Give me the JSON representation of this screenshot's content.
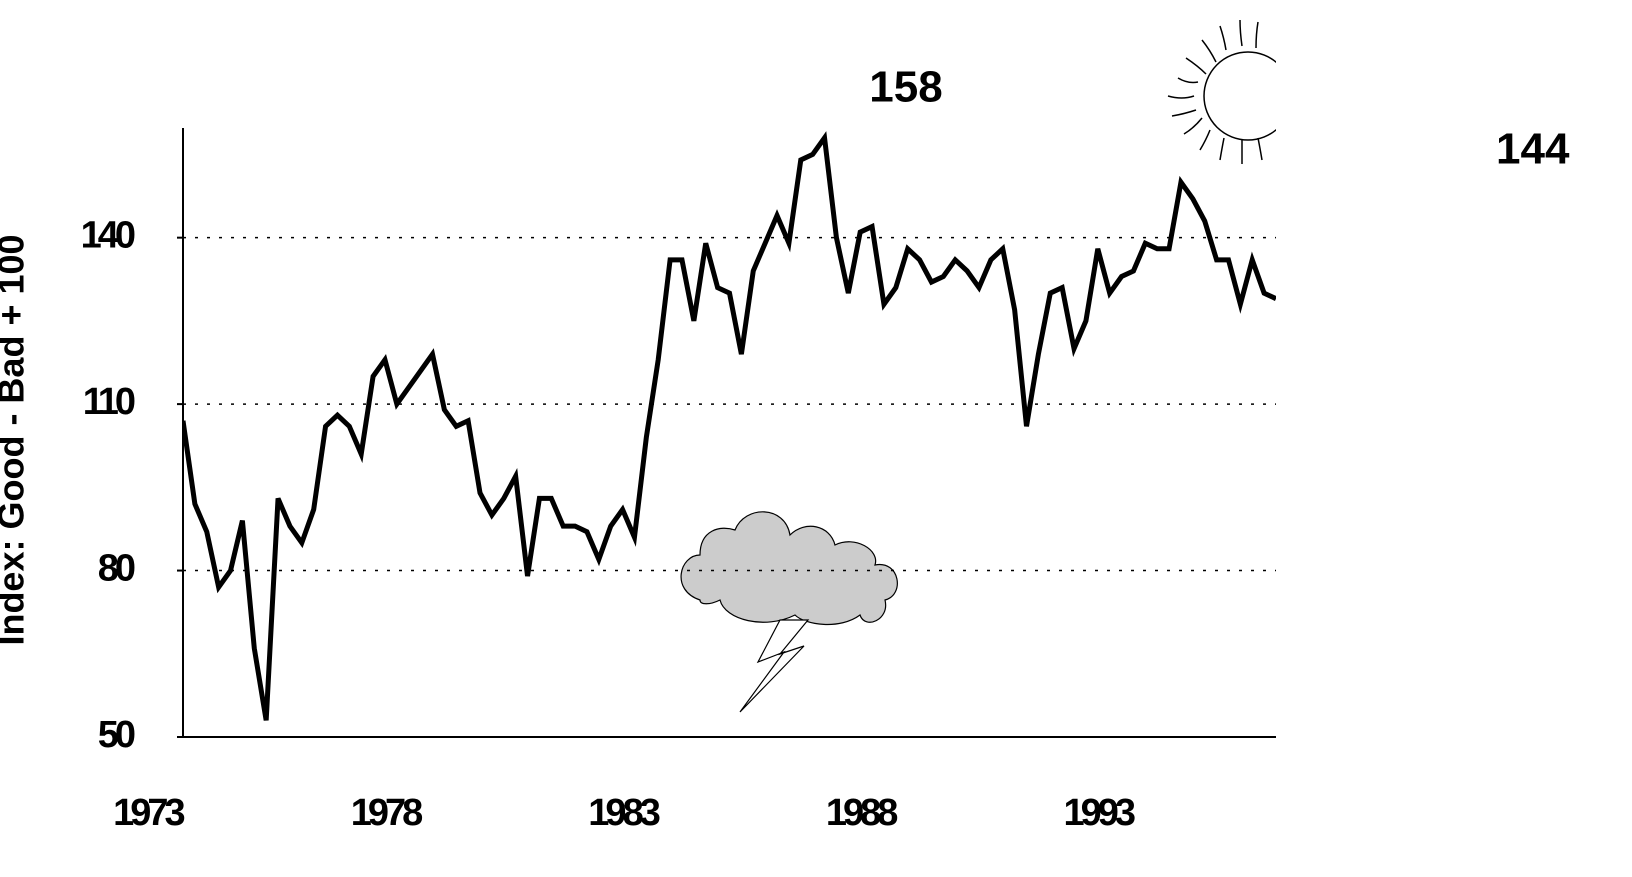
{
  "chart_data": {
    "type": "line",
    "y_label": "Index: Good - Bad + 100",
    "annotations": [
      "158",
      "144"
    ],
    "x": [
      1973.75,
      1974,
      1974.25,
      1974.5,
      1974.75,
      1975,
      1975.25,
      1975.5,
      1975.75,
      1976,
      1976.25,
      1976.5,
      1976.75,
      1977,
      1977.25,
      1977.5,
      1977.75,
      1978,
      1978.25,
      1978.5,
      1978.75,
      1979,
      1979.25,
      1979.5,
      1979.75,
      1980,
      1980.25,
      1980.5,
      1980.75,
      1981,
      1981.25,
      1981.5,
      1981.75,
      1982,
      1982.25,
      1982.5,
      1982.75,
      1983,
      1983.25,
      1983.5,
      1983.75,
      1984,
      1984.25,
      1984.5,
      1984.75,
      1985,
      1985.25,
      1985.5,
      1985.75,
      1986,
      1986.25,
      1986.5,
      1986.75,
      1987,
      1987.25,
      1987.5,
      1987.75,
      1988,
      1988.25,
      1988.5,
      1988.75,
      1989,
      1989.25,
      1989.5,
      1989.75,
      1990,
      1990.25,
      1990.5,
      1990.75,
      1991,
      1991.25,
      1991.5,
      1991.75,
      1992,
      1992.25,
      1992.5,
      1992.75,
      1993,
      1993.25,
      1993.5,
      1993.75,
      1994,
      1994.25,
      1994.5,
      1994.75,
      1995,
      1995.25,
      1995.5,
      1995.75,
      1996,
      1996.25,
      1996.5,
      1996.75
    ],
    "series": [
      {
        "color": "#000000",
        "values": [
          107,
          92,
          87,
          77,
          80,
          89,
          66,
          53,
          93,
          88,
          85,
          91,
          106,
          108,
          106,
          101,
          115,
          118,
          110,
          113,
          116,
          119,
          109,
          106,
          107,
          94,
          90,
          93,
          97,
          79,
          93,
          93,
          88,
          88,
          87,
          82,
          88,
          91,
          86,
          104,
          118,
          136,
          136,
          125,
          139,
          131,
          130,
          119,
          134,
          139,
          144,
          139,
          154,
          155,
          158,
          140,
          130,
          141,
          142,
          128,
          131,
          138,
          136,
          132,
          133,
          136,
          134,
          131,
          136,
          138,
          127,
          106,
          119,
          130,
          131,
          120,
          125,
          138,
          130,
          133,
          134,
          139,
          138,
          138,
          150,
          147,
          143,
          136,
          136,
          128,
          136,
          130,
          129
        ]
      }
    ],
    "xlim": [
      1973.75,
      1996.75
    ],
    "xticks": [
      1973,
      1978,
      1983,
      1988,
      1993
    ],
    "ylim": [
      50,
      160
    ],
    "yticks": [
      50,
      80,
      110,
      140
    ],
    "grid": true
  }
}
